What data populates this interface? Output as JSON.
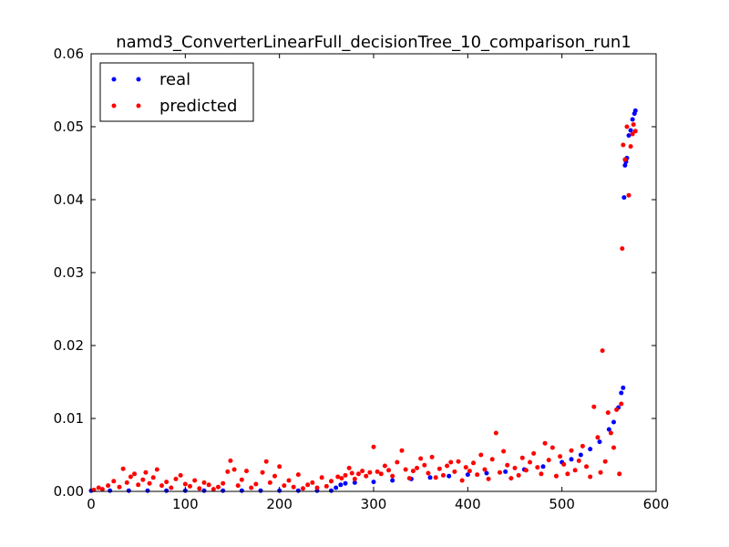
{
  "chart_data": {
    "type": "scatter",
    "title": "namd3_ConverterLinearFull_decisionTree_10_comparison_run1",
    "xlabel": "",
    "ylabel": "",
    "xlim": [
      0,
      600
    ],
    "ylim": [
      0,
      0.06
    ],
    "x_ticks": [
      "0",
      "100",
      "200",
      "300",
      "400",
      "500",
      "600"
    ],
    "y_ticks": [
      "0.00",
      "0.01",
      "0.02",
      "0.03",
      "0.04",
      "0.05",
      "0.06"
    ],
    "x_tick_values": [
      0,
      100,
      200,
      300,
      400,
      500,
      600
    ],
    "y_tick_values": [
      0,
      0.01,
      0.02,
      0.03,
      0.04,
      0.05,
      0.06
    ],
    "grid": false,
    "legend_position": "top-left",
    "series": [
      {
        "name": "real",
        "color": "#0000ff",
        "points": [
          [
            0,
            0.0001
          ],
          [
            20,
            0.0001
          ],
          [
            40,
            0.0001
          ],
          [
            60,
            0.0001
          ],
          [
            80,
            0.0001
          ],
          [
            100,
            0.0001
          ],
          [
            120,
            0.0001
          ],
          [
            140,
            0.0001
          ],
          [
            160,
            0.0001
          ],
          [
            180,
            0.0001
          ],
          [
            200,
            0.0001
          ],
          [
            220,
            0.0001
          ],
          [
            240,
            0.0001
          ],
          [
            255,
            0.0001
          ],
          [
            260,
            0.0005
          ],
          [
            265,
            0.0009
          ],
          [
            270,
            0.0011
          ],
          [
            280,
            0.0012
          ],
          [
            300,
            0.0013
          ],
          [
            320,
            0.0015
          ],
          [
            340,
            0.0017
          ],
          [
            360,
            0.0019
          ],
          [
            380,
            0.0021
          ],
          [
            400,
            0.0023
          ],
          [
            420,
            0.0025
          ],
          [
            440,
            0.0027
          ],
          [
            460,
            0.003
          ],
          [
            480,
            0.0034
          ],
          [
            500,
            0.004
          ],
          [
            510,
            0.0044
          ],
          [
            520,
            0.005
          ],
          [
            530,
            0.0058
          ],
          [
            540,
            0.0068
          ],
          [
            550,
            0.0085
          ],
          [
            555,
            0.0095
          ],
          [
            560,
            0.0115
          ],
          [
            563,
            0.0135
          ],
          [
            565,
            0.0142
          ],
          [
            566,
            0.0403
          ],
          [
            567,
            0.0447
          ],
          [
            568,
            0.0452
          ],
          [
            569,
            0.0457
          ],
          [
            571,
            0.0488
          ],
          [
            573,
            0.0495
          ],
          [
            575,
            0.051
          ],
          [
            577,
            0.0518
          ],
          [
            578,
            0.0522
          ]
        ]
      },
      {
        "name": "predicted",
        "color": "#ff0000",
        "points": [
          [
            3,
            0.0002
          ],
          [
            8,
            0.0005
          ],
          [
            12,
            0.0003
          ],
          [
            18,
            0.0008
          ],
          [
            24,
            0.0014
          ],
          [
            30,
            0.0006
          ],
          [
            34,
            0.0031
          ],
          [
            38,
            0.0012
          ],
          [
            42,
            0.002
          ],
          [
            46,
            0.0024
          ],
          [
            50,
            0.0009
          ],
          [
            55,
            0.0016
          ],
          [
            58,
            0.0026
          ],
          [
            62,
            0.0011
          ],
          [
            66,
            0.0019
          ],
          [
            70,
            0.003
          ],
          [
            75,
            0.0008
          ],
          [
            80,
            0.0013
          ],
          [
            85,
            0.0005
          ],
          [
            90,
            0.0017
          ],
          [
            95,
            0.0022
          ],
          [
            100,
            0.001
          ],
          [
            105,
            0.0007
          ],
          [
            110,
            0.0015
          ],
          [
            115,
            0.0004
          ],
          [
            120,
            0.0012
          ],
          [
            125,
            0.0009
          ],
          [
            130,
            0.0003
          ],
          [
            135,
            0.0006
          ],
          [
            140,
            0.0011
          ],
          [
            145,
            0.0027
          ],
          [
            148,
            0.0042
          ],
          [
            152,
            0.003
          ],
          [
            156,
            0.0008
          ],
          [
            160,
            0.0016
          ],
          [
            165,
            0.0028
          ],
          [
            170,
            0.0005
          ],
          [
            175,
            0.001
          ],
          [
            182,
            0.0026
          ],
          [
            186,
            0.0041
          ],
          [
            190,
            0.0012
          ],
          [
            195,
            0.0021
          ],
          [
            200,
            0.0034
          ],
          [
            205,
            0.0008
          ],
          [
            210,
            0.0015
          ],
          [
            215,
            0.0006
          ],
          [
            220,
            0.0023
          ],
          [
            225,
            0.0004
          ],
          [
            230,
            0.0009
          ],
          [
            235,
            0.0012
          ],
          [
            240,
            0.0005
          ],
          [
            245,
            0.0019
          ],
          [
            250,
            0.0007
          ],
          [
            255,
            0.0014
          ],
          [
            262,
            0.002
          ],
          [
            266,
            0.0018
          ],
          [
            270,
            0.0022
          ],
          [
            274,
            0.0032
          ],
          [
            277,
            0.0025
          ],
          [
            280,
            0.0017
          ],
          [
            284,
            0.0024
          ],
          [
            288,
            0.0028
          ],
          [
            292,
            0.0021
          ],
          [
            296,
            0.0026
          ],
          [
            300,
            0.0061
          ],
          [
            304,
            0.0027
          ],
          [
            308,
            0.0024
          ],
          [
            312,
            0.0035
          ],
          [
            316,
            0.0029
          ],
          [
            320,
            0.0021
          ],
          [
            325,
            0.004
          ],
          [
            330,
            0.0056
          ],
          [
            334,
            0.003
          ],
          [
            338,
            0.0018
          ],
          [
            342,
            0.0028
          ],
          [
            346,
            0.0032
          ],
          [
            350,
            0.0045
          ],
          [
            354,
            0.0036
          ],
          [
            358,
            0.0025
          ],
          [
            362,
            0.0047
          ],
          [
            366,
            0.0019
          ],
          [
            370,
            0.0031
          ],
          [
            374,
            0.0022
          ],
          [
            378,
            0.0035
          ],
          [
            382,
            0.004
          ],
          [
            386,
            0.0027
          ],
          [
            390,
            0.0041
          ],
          [
            394,
            0.0015
          ],
          [
            398,
            0.0033
          ],
          [
            402,
            0.0028
          ],
          [
            406,
            0.0039
          ],
          [
            410,
            0.0023
          ],
          [
            414,
            0.005
          ],
          [
            418,
            0.003
          ],
          [
            422,
            0.0017
          ],
          [
            426,
            0.0044
          ],
          [
            430,
            0.008
          ],
          [
            434,
            0.0026
          ],
          [
            438,
            0.0055
          ],
          [
            442,
            0.0036
          ],
          [
            446,
            0.0018
          ],
          [
            450,
            0.0032
          ],
          [
            454,
            0.0022
          ],
          [
            458,
            0.0046
          ],
          [
            462,
            0.0029
          ],
          [
            466,
            0.004
          ],
          [
            470,
            0.0052
          ],
          [
            474,
            0.0033
          ],
          [
            478,
            0.0024
          ],
          [
            482,
            0.0066
          ],
          [
            486,
            0.0043
          ],
          [
            490,
            0.006
          ],
          [
            494,
            0.0021
          ],
          [
            498,
            0.0048
          ],
          [
            502,
            0.0037
          ],
          [
            506,
            0.0024
          ],
          [
            510,
            0.0056
          ],
          [
            514,
            0.0029
          ],
          [
            518,
            0.0042
          ],
          [
            522,
            0.0062
          ],
          [
            526,
            0.0034
          ],
          [
            530,
            0.002
          ],
          [
            534,
            0.0116
          ],
          [
            538,
            0.0074
          ],
          [
            541,
            0.0026
          ],
          [
            543,
            0.0193
          ],
          [
            546,
            0.0041
          ],
          [
            549,
            0.0108
          ],
          [
            552,
            0.008
          ],
          [
            555,
            0.006
          ],
          [
            558,
            0.0112
          ],
          [
            561,
            0.0024
          ],
          [
            563,
            0.012
          ],
          [
            564,
            0.0333
          ],
          [
            565,
            0.0475
          ],
          [
            567,
            0.0455
          ],
          [
            569,
            0.05
          ],
          [
            571,
            0.0406
          ],
          [
            573,
            0.0473
          ],
          [
            575,
            0.049
          ],
          [
            576,
            0.0503
          ],
          [
            578,
            0.0494
          ]
        ]
      }
    ]
  }
}
